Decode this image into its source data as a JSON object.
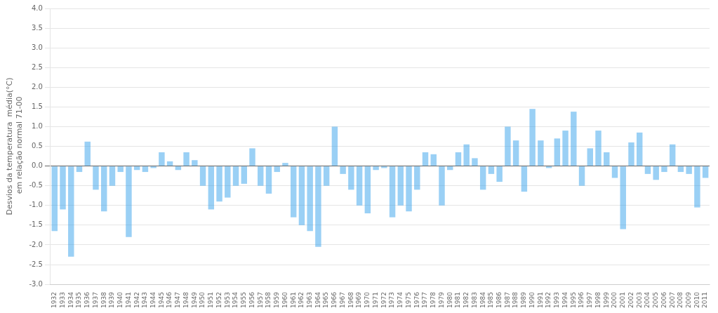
{
  "chart_data": {
    "type": "bar",
    "y_label": "Desvios da temperatura  média(°C)\n em relação normal 71-00",
    "categories": [
      "1932",
      "1933",
      "1934",
      "1935",
      "1936",
      "1937",
      "1938",
      "1939",
      "1940",
      "1941",
      "1942",
      "1943",
      "1944",
      "1945",
      "1946",
      "1947",
      "1948",
      "1949",
      "1950",
      "1951",
      "1952",
      "1953",
      "1954",
      "1955",
      "1956",
      "1957",
      "1958",
      "1959",
      "1960",
      "1961",
      "1962",
      "1963",
      "1964",
      "1965",
      "1966",
      "1967",
      "1968",
      "1969",
      "1970",
      "1971",
      "1972",
      "1973",
      "1974",
      "1975",
      "1976",
      "1977",
      "1978",
      "1979",
      "1980",
      "1981",
      "1982",
      "1983",
      "1984",
      "1985",
      "1986",
      "1987",
      "1988",
      "1989",
      "1990",
      "1991",
      "1992",
      "1993",
      "1994",
      "1995",
      "1996",
      "1997",
      "1998",
      "1999",
      "2000",
      "2001",
      "2002",
      "2003",
      "2004",
      "2005",
      "2006",
      "2007",
      "2008",
      "2009",
      "2010",
      "2011"
    ],
    "values": [
      -1.65,
      -1.1,
      -2.3,
      -0.15,
      0.62,
      -0.6,
      -1.15,
      -0.5,
      -0.15,
      -1.8,
      -0.1,
      -0.15,
      -0.05,
      0.35,
      0.12,
      -0.1,
      0.35,
      0.15,
      -0.5,
      -1.1,
      -0.9,
      -0.8,
      -0.5,
      -0.45,
      0.45,
      -0.5,
      -0.7,
      -0.15,
      0.08,
      -1.3,
      -1.5,
      -1.65,
      -2.05,
      -0.5,
      1.0,
      -0.2,
      -0.6,
      -1.0,
      -1.2,
      -0.1,
      -0.05,
      -1.3,
      -1.0,
      -1.15,
      -0.6,
      0.35,
      0.3,
      -1.0,
      -0.1,
      0.35,
      0.55,
      0.2,
      -0.6,
      -0.2,
      -0.4,
      1.0,
      0.65,
      -0.65,
      1.45,
      0.65,
      -0.05,
      0.7,
      0.9,
      1.38,
      -0.5,
      0.45,
      0.9,
      0.35,
      -0.3,
      -1.6,
      0.6,
      0.85,
      -0.2,
      -0.35,
      -0.15,
      0.55,
      -0.15,
      -0.2,
      -1.05,
      -0.3
    ],
    "ylim": [
      -3.0,
      4.0
    ],
    "yticks": [
      {
        "value": -3.0,
        "label": "-3.0"
      },
      -2.5,
      {
        "value": -2.0,
        "label": "-2.0"
      },
      -1.5,
      {
        "value": -1.0,
        "label": "-1.0"
      },
      -0.5,
      {
        "value": 0.0,
        "label": "0.0"
      },
      0.5,
      {
        "value": 1.0,
        "label": "1.0"
      },
      1.5,
      {
        "value": 2.0,
        "label": "2.0"
      },
      2.5,
      {
        "value": 3.0,
        "label": "3.0"
      },
      3.5,
      {
        "value": 4.0,
        "label": "4.0"
      }
    ],
    "grid": true
  }
}
